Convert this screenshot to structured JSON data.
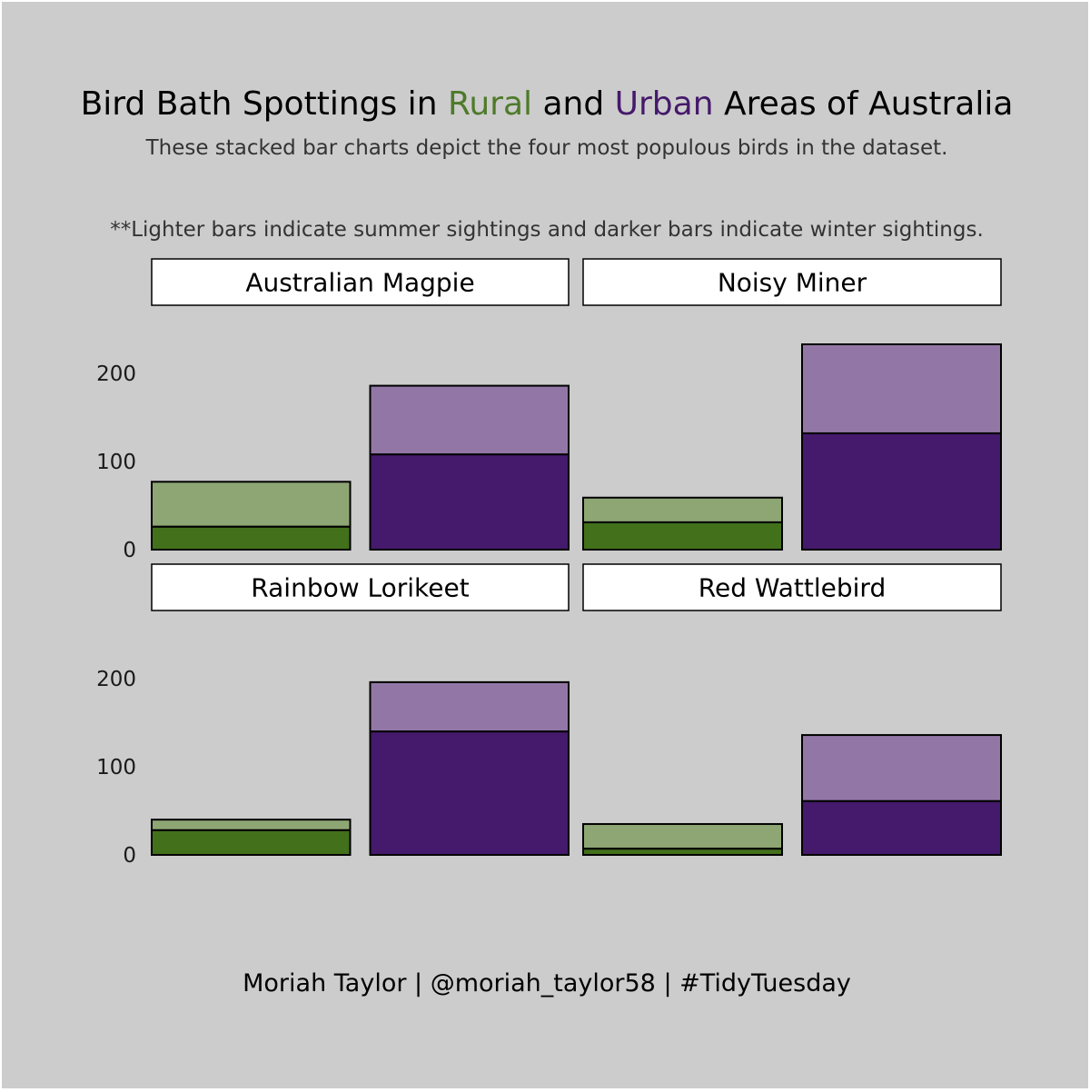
{
  "title": {
    "part1": "Bird Bath Spottings in ",
    "rural": "Rural",
    "part2": " and ",
    "urban": "Urban",
    "part3": " Areas of Australia"
  },
  "subtitle": "These stacked bar charts depict the four most populous birds in the dataset.",
  "note": "**Lighter bars indicate summer sightings and darker bars indicate winter sightings.",
  "caption": "Moriah Taylor | @moriah_taylor58 | #TidyTuesday",
  "colors": {
    "background": "#cccccc",
    "rural_dark": "#42701b",
    "rural_light": "#8ea673",
    "urban_dark": "#45196b",
    "urban_light": "#9277a6",
    "strip_fill": "#ffffff"
  },
  "chart_data": {
    "type": "bar",
    "stacked": true,
    "facet_rows": 2,
    "facet_cols": 2,
    "ylim": [
      0,
      250
    ],
    "y_ticks": [
      0,
      100,
      200
    ],
    "x_labels_shown": false,
    "categories": [
      "Rural",
      "Urban"
    ],
    "panels": [
      {
        "name": "Australian Magpie",
        "bars": [
          {
            "category": "Rural",
            "winter": 26,
            "summer": 51
          },
          {
            "category": "Urban",
            "winter": 108,
            "summer": 78
          }
        ]
      },
      {
        "name": "Noisy Miner",
        "bars": [
          {
            "category": "Rural",
            "winter": 31,
            "summer": 28
          },
          {
            "category": "Urban",
            "winter": 132,
            "summer": 101
          }
        ]
      },
      {
        "name": "Rainbow Lorikeet",
        "bars": [
          {
            "category": "Rural",
            "winter": 28,
            "summer": 12
          },
          {
            "category": "Urban",
            "winter": 140,
            "summer": 56
          }
        ]
      },
      {
        "name": "Red Wattlebird",
        "bars": [
          {
            "category": "Rural",
            "winter": 7,
            "summer": 28
          },
          {
            "category": "Urban",
            "winter": 61,
            "summer": 75
          }
        ]
      }
    ]
  }
}
